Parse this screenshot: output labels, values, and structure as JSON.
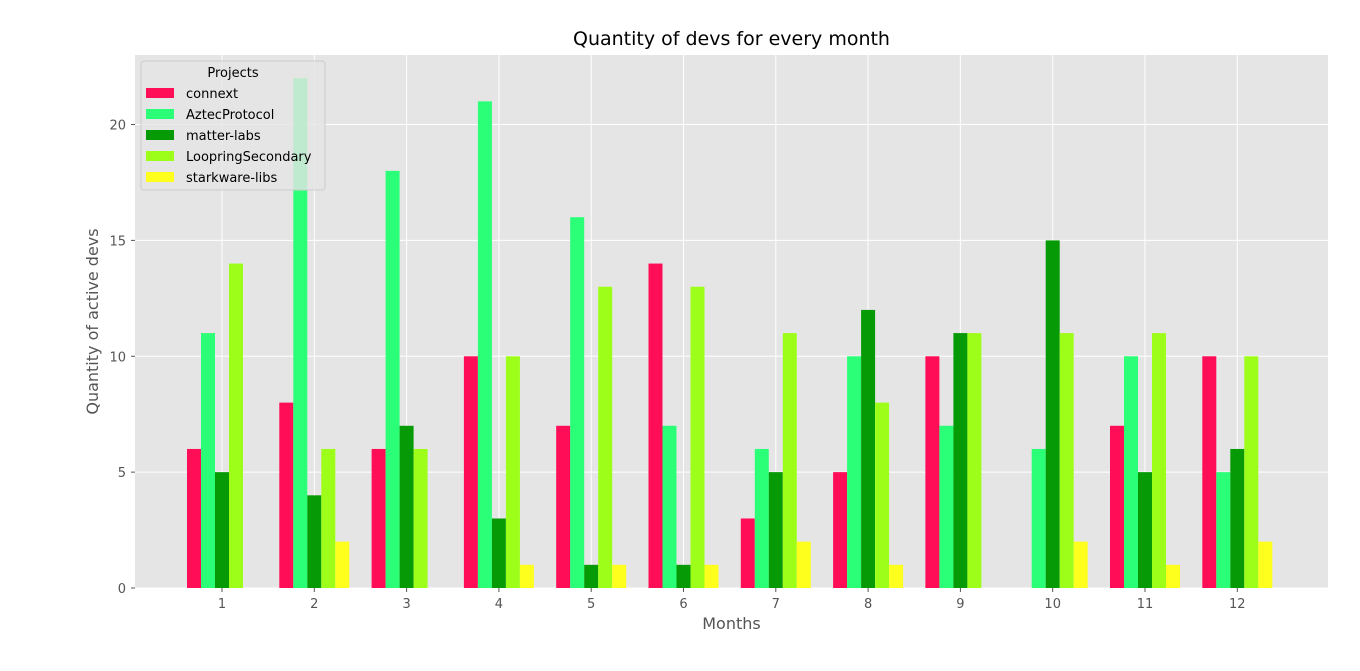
{
  "chart_data": {
    "type": "bar",
    "title": "Quantity of devs for every month",
    "xlabel": "Months",
    "ylabel": "Quantity of active devs",
    "categories": [
      "1",
      "2",
      "3",
      "4",
      "5",
      "6",
      "7",
      "8",
      "9",
      "10",
      "11",
      "12"
    ],
    "ylim": [
      0,
      23
    ],
    "yticks": [
      0,
      5,
      10,
      15,
      20
    ],
    "grid": true,
    "legend": {
      "title": "Projects",
      "placement": "top-left"
    },
    "series": [
      {
        "name": "connext",
        "color": "#ff0d57",
        "values": [
          6,
          8,
          6,
          10,
          7,
          14,
          3,
          5,
          10,
          0,
          7,
          10
        ]
      },
      {
        "name": "AztecProtocol",
        "color": "#2aff77",
        "values": [
          11,
          22,
          18,
          21,
          16,
          7,
          6,
          10,
          7,
          6,
          10,
          5
        ]
      },
      {
        "name": "matter-labs",
        "color": "#079a07",
        "values": [
          5,
          4,
          7,
          3,
          1,
          1,
          5,
          12,
          11,
          15,
          5,
          6
        ]
      },
      {
        "name": "LoopringSecondary",
        "color": "#9dff19",
        "values": [
          14,
          6,
          6,
          10,
          13,
          13,
          11,
          8,
          11,
          11,
          11,
          10
        ]
      },
      {
        "name": "starkware-libs",
        "color": "#ffff1e",
        "values": [
          0,
          2,
          0,
          1,
          1,
          1,
          2,
          1,
          0,
          2,
          1,
          2
        ]
      }
    ]
  }
}
